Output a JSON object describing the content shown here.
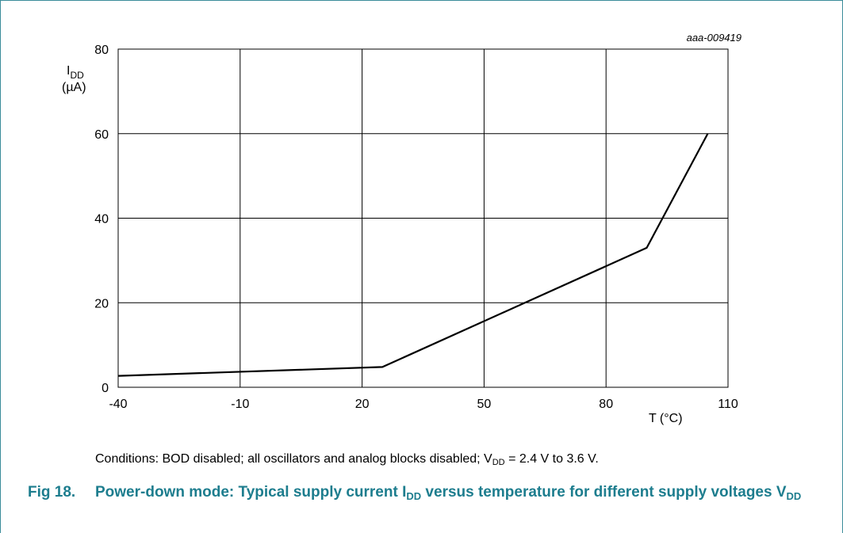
{
  "chart_data": {
    "type": "line",
    "code": "aaa-009419",
    "ylabel_main": "I",
    "ylabel_sub": "DD",
    "ylabel_unit": "(µA)",
    "xlabel": "T (°C)",
    "xlim": [
      -40,
      110
    ],
    "ylim": [
      0,
      80
    ],
    "x_ticks": [
      "-40",
      "-10",
      "20",
      "50",
      "80",
      "110"
    ],
    "y_ticks": [
      "0",
      "20",
      "40",
      "60",
      "80"
    ],
    "x_tick_values": [
      -40,
      -10,
      20,
      50,
      80,
      110
    ],
    "y_tick_values": [
      0,
      20,
      40,
      60,
      80
    ],
    "grid": true,
    "series": [
      {
        "x": [
          -40,
          25,
          90,
          105
        ],
        "y": [
          2.7,
          4.8,
          33,
          60
        ]
      }
    ]
  },
  "conditions": {
    "text_before": "Conditions: BOD disabled; all oscillators and analog blocks disabled; V",
    "sub": "DD",
    "text_after": " = 2.4 V to 3.6 V."
  },
  "caption": {
    "number": "Fig 18.",
    "text_before": "Power-down mode: Typical supply current I",
    "sub1": "DD",
    "text_middle": " versus temperature for different supply voltages V",
    "sub2": "DD"
  }
}
